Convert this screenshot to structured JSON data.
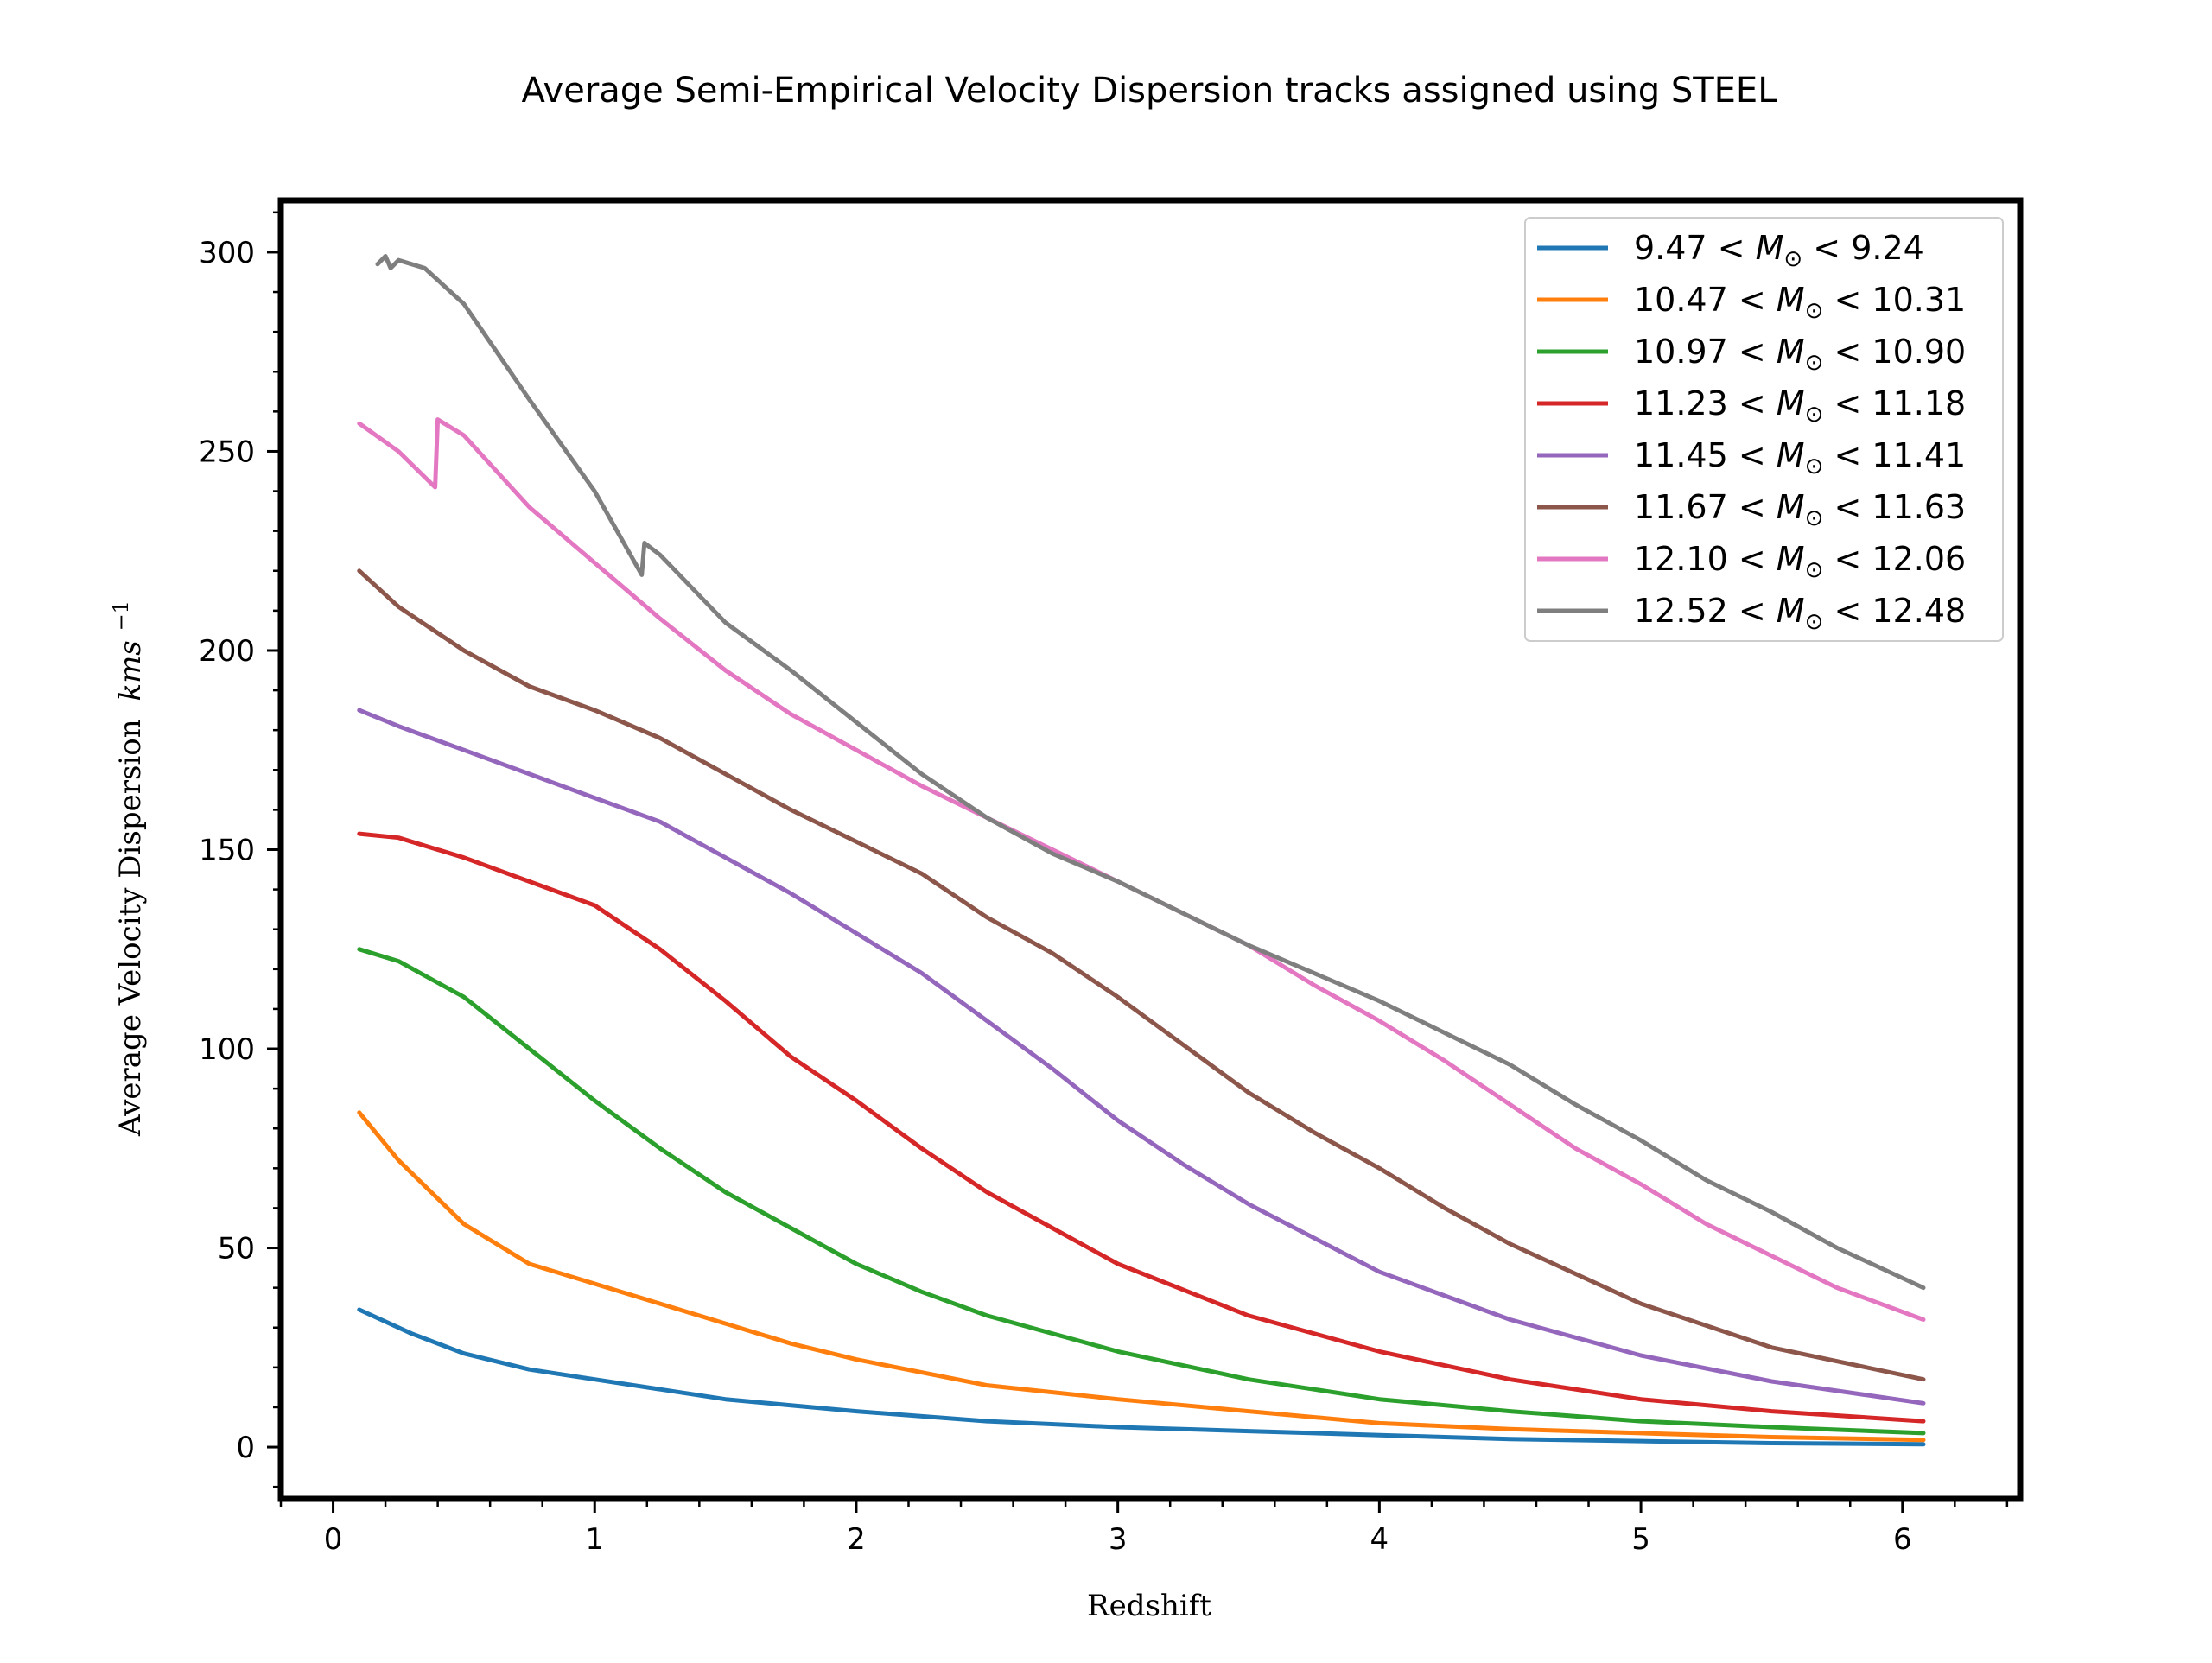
{
  "chart_data": {
    "type": "line",
    "title": "Average Semi-Empirical Velocity Dispersion tracks assigned using STEEL",
    "xlabel": "Redshift",
    "ylabel": "Average Velocity Dispersion kms⁻¹",
    "ylabel_main": "Average Velocity Dispersion",
    "ylabel_unit": "kms",
    "ylabel_exp": "−1",
    "xlim": [
      -0.2,
      6.45
    ],
    "ylim": [
      -13,
      313
    ],
    "xticks": [
      0,
      1,
      2,
      3,
      4,
      5,
      6
    ],
    "xtick_labels": [
      "0",
      "1",
      "2",
      "3",
      "4",
      "5",
      "6"
    ],
    "yticks": [
      0,
      50,
      100,
      150,
      200,
      250,
      300
    ],
    "ytick_labels": [
      "0",
      "50",
      "100",
      "150",
      "200",
      "250",
      "300"
    ],
    "grid": false,
    "legend_position": "top-right",
    "series": [
      {
        "name": "9.47 < M⊙ < 9.24",
        "legend": {
          "low": "9.47",
          "high": "9.24"
        },
        "color": "#1f77b4",
        "x": [
          0.1,
          0.3,
          0.5,
          0.75,
          1.0,
          1.25,
          1.5,
          1.75,
          2.0,
          2.5,
          3.0,
          3.5,
          4.0,
          4.5,
          5.0,
          5.5,
          6.08
        ],
        "values": [
          34.5,
          28.5,
          23.5,
          19.5,
          17,
          14.5,
          12,
          10.5,
          9,
          6.5,
          5,
          4,
          3,
          2,
          1.5,
          1,
          0.7
        ]
      },
      {
        "name": "10.47 < M⊙ < 10.31",
        "legend": {
          "low": "10.47",
          "high": "10.31"
        },
        "color": "#ff7f0e",
        "x": [
          0.1,
          0.25,
          0.5,
          0.75,
          1.0,
          1.25,
          1.5,
          1.75,
          2.0,
          2.5,
          3.0,
          3.5,
          4.0,
          4.5,
          5.0,
          5.5,
          6.08
        ],
        "values": [
          84,
          72,
          56,
          46,
          41,
          36,
          31,
          26,
          22,
          15.5,
          12,
          9,
          6,
          4.5,
          3.5,
          2.5,
          1.8
        ]
      },
      {
        "name": "10.97 < M⊙ < 10.90",
        "legend": {
          "low": "10.97",
          "high": "10.90"
        },
        "color": "#2ca02c",
        "x": [
          0.1,
          0.25,
          0.5,
          0.75,
          1.0,
          1.25,
          1.5,
          1.75,
          2.0,
          2.25,
          2.5,
          3.0,
          3.5,
          4.0,
          4.5,
          5.0,
          5.5,
          6.08
        ],
        "values": [
          125,
          122,
          113,
          100,
          87,
          75,
          64,
          55,
          46,
          39,
          33,
          24,
          17,
          12,
          9,
          6.5,
          5,
          3.5
        ]
      },
      {
        "name": "11.23 < M⊙ < 11.18",
        "legend": {
          "low": "11.23",
          "high": "11.18"
        },
        "color": "#d62728",
        "x": [
          0.1,
          0.25,
          0.5,
          0.75,
          1.0,
          1.25,
          1.5,
          1.75,
          2.0,
          2.25,
          2.5,
          2.75,
          3.0,
          3.5,
          4.0,
          4.5,
          5.0,
          5.5,
          6.08
        ],
        "values": [
          154,
          153,
          148,
          142,
          136,
          125,
          112,
          98,
          87,
          75,
          64,
          55,
          46,
          33,
          24,
          17,
          12,
          9,
          6.5
        ]
      },
      {
        "name": "11.45 < M⊙ < 11.41",
        "legend": {
          "low": "11.45",
          "high": "11.41"
        },
        "color": "#9467bd",
        "x": [
          0.1,
          0.25,
          0.5,
          0.75,
          1.0,
          1.25,
          1.5,
          1.75,
          2.0,
          2.25,
          2.5,
          2.75,
          3.0,
          3.25,
          3.5,
          4.0,
          4.5,
          5.0,
          5.5,
          6.08
        ],
        "values": [
          185,
          181,
          175,
          169,
          163,
          157,
          148,
          139,
          129,
          119,
          107,
          95,
          82,
          71,
          61,
          44,
          32,
          23,
          16.5,
          11
        ]
      },
      {
        "name": "11.67 < M⊙ < 11.63",
        "legend": {
          "low": "11.67",
          "high": "11.63"
        },
        "color": "#8c564b",
        "x": [
          0.1,
          0.25,
          0.5,
          0.75,
          1.0,
          1.25,
          1.5,
          1.75,
          2.0,
          2.25,
          2.5,
          2.75,
          3.0,
          3.25,
          3.5,
          3.75,
          4.0,
          4.25,
          4.5,
          5.0,
          5.5,
          6.08
        ],
        "values": [
          220,
          211,
          200,
          191,
          185,
          178,
          169,
          160,
          152,
          144,
          133,
          124,
          113,
          101,
          89,
          79,
          70,
          60,
          51,
          36,
          25,
          17
        ]
      },
      {
        "name": "12.10 < M⊙ < 12.06",
        "legend": {
          "low": "12.10",
          "high": "12.06"
        },
        "color": "#e377c2",
        "x": [
          0.1,
          0.25,
          0.39,
          0.4,
          0.5,
          0.75,
          1.0,
          1.25,
          1.5,
          1.75,
          2.0,
          2.25,
          2.5,
          2.75,
          3.0,
          3.25,
          3.5,
          3.75,
          4.0,
          4.25,
          4.5,
          4.75,
          5.0,
          5.25,
          5.5,
          5.75,
          6.08
        ],
        "values": [
          257,
          250,
          241,
          258,
          254,
          236,
          222,
          208,
          195,
          184,
          175,
          166,
          158,
          150,
          142,
          134,
          126,
          116,
          107,
          97,
          86,
          75,
          66,
          56,
          48,
          40,
          32
        ]
      },
      {
        "name": "12.52 < M⊙ < 12.48",
        "legend": {
          "low": "12.52",
          "high": "12.48"
        },
        "color": "#7f7f7f",
        "x": [
          0.17,
          0.2,
          0.22,
          0.25,
          0.35,
          0.5,
          0.75,
          1.0,
          1.18,
          1.19,
          1.25,
          1.5,
          1.75,
          2.0,
          2.25,
          2.5,
          2.75,
          3.0,
          3.25,
          3.5,
          3.75,
          4.0,
          4.25,
          4.5,
          4.75,
          5.0,
          5.25,
          5.5,
          5.75,
          6.08
        ],
        "values": [
          297,
          299,
          296,
          298,
          296,
          287,
          263,
          240,
          219,
          227,
          224,
          207,
          195,
          182,
          169,
          158,
          149,
          142,
          134,
          126,
          119,
          112,
          104,
          96,
          86,
          77,
          67,
          59,
          50,
          40
        ]
      }
    ]
  }
}
